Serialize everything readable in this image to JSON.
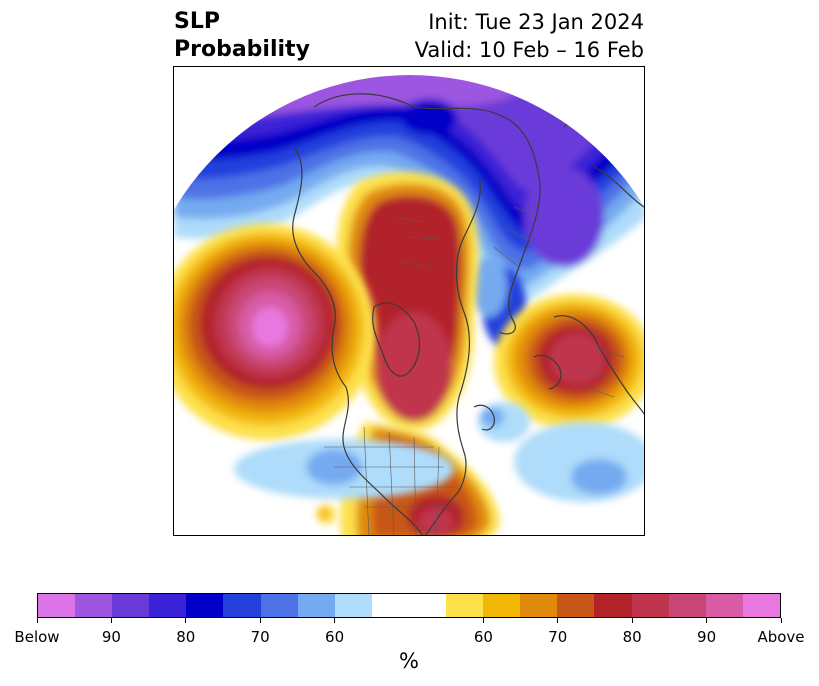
{
  "title": {
    "left_line1": "SLP",
    "left_line2": "Probability",
    "right_line1": "Init: Tue 23 Jan 2024",
    "right_line2": "Valid: 10 Feb – 16 Feb"
  },
  "colorbar": {
    "colors": [
      "#dc73e6",
      "#9c56e0",
      "#6a3ad8",
      "#3a22d6",
      "#0000c8",
      "#2340dc",
      "#4d72e6",
      "#74aaf0",
      "#aedcfa",
      "#ffffff",
      "#ffffff",
      "#fde04a",
      "#f2b607",
      "#e08a0c",
      "#c85616",
      "#b2232a",
      "#c0344c",
      "#c84675",
      "#d85ca5",
      "#e878e0"
    ],
    "tick_labels": [
      "Below",
      "90",
      "80",
      "70",
      "60",
      "60",
      "70",
      "80",
      "90",
      "Above"
    ],
    "units": "%"
  },
  "map": {
    "projection": "north-polar-stereographic",
    "variable": "sea-level-pressure-probability"
  }
}
